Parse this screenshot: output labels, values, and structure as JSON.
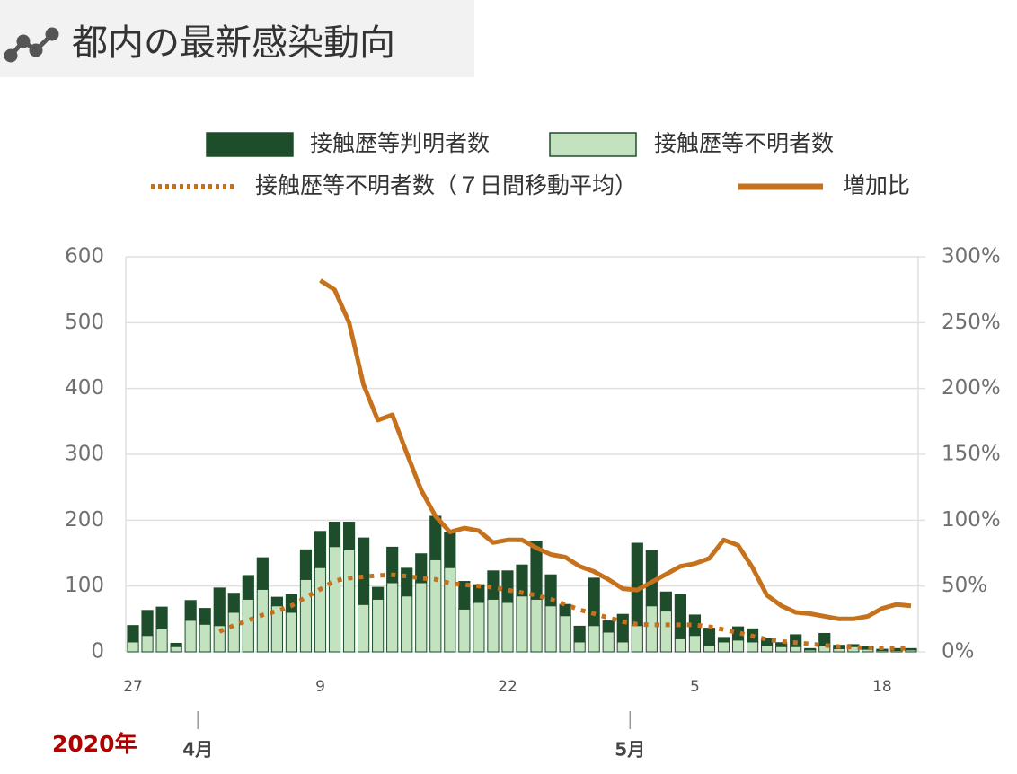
{
  "title": "都内の最新感染動向",
  "chart_data": {
    "type": "bar",
    "stacked": true,
    "categories": [
      "27",
      null,
      null,
      null,
      null,
      null,
      null,
      null,
      null,
      null,
      null,
      null,
      null,
      "9",
      null,
      null,
      null,
      null,
      null,
      null,
      null,
      null,
      null,
      null,
      null,
      null,
      "22",
      null,
      null,
      null,
      null,
      null,
      null,
      null,
      null,
      null,
      null,
      null,
      null,
      "5",
      null,
      null,
      null,
      null,
      null,
      null,
      null,
      null,
      null,
      null,
      null,
      null,
      "18",
      null,
      null
    ],
    "year_label": "2020年",
    "month_labels": [
      "4月",
      "5月"
    ],
    "series": [
      {
        "name": "接触歴等判明者数",
        "type": "bar",
        "color": "#1e4d2b",
        "values": [
          25,
          38,
          33,
          5,
          30,
          24,
          57,
          29,
          36,
          48,
          13,
          27,
          45,
          55,
          37,
          42,
          101,
          18,
          54,
          42,
          44,
          66,
          54,
          42,
          27,
          43,
          48,
          47,
          88,
          47,
          17,
          24,
          72,
          17,
          42,
          125,
          84,
          29,
          67,
          31,
          26,
          7,
          20,
          20,
          10,
          6,
          18,
          2,
          18,
          5,
          3,
          4,
          2,
          3,
          2
        ]
      },
      {
        "name": "接触歴等不明者数",
        "type": "bar",
        "color": "#c3e3c0",
        "values": [
          15,
          25,
          35,
          8,
          48,
          42,
          40,
          60,
          80,
          95,
          70,
          60,
          110,
          128,
          160,
          155,
          72,
          80,
          105,
          85,
          105,
          140,
          128,
          65,
          75,
          80,
          75,
          85,
          80,
          70,
          55,
          15,
          40,
          30,
          15,
          40,
          70,
          62,
          20,
          25,
          10,
          15,
          18,
          15,
          10,
          8,
          8,
          3,
          10,
          5,
          8,
          4,
          2,
          2,
          3
        ]
      },
      {
        "name": "接触歴等不明者数（７日間移動平均）",
        "type": "line",
        "style": "dotted",
        "color": "#c6711c",
        "values": [
          null,
          null,
          null,
          null,
          null,
          null,
          31,
          40,
          48,
          56,
          62,
          70,
          83,
          95,
          108,
          112,
          114,
          116,
          117,
          115,
          112,
          110,
          104,
          102,
          100,
          98,
          94,
          90,
          86,
          80,
          72,
          64,
          58,
          52,
          46,
          42,
          41,
          41,
          41,
          41,
          38,
          34,
          29,
          24,
          19,
          16,
          14,
          12,
          10,
          8,
          7,
          6,
          6,
          5,
          5
        ]
      },
      {
        "name": "増加比",
        "type": "line",
        "style": "solid",
        "color": "#c6711c",
        "axis": "y2",
        "values": [
          null,
          null,
          null,
          null,
          null,
          null,
          null,
          null,
          null,
          null,
          null,
          null,
          null,
          282,
          275,
          250,
          203,
          176,
          180,
          151,
          123,
          103,
          91,
          94,
          92,
          83,
          85,
          85,
          79,
          74,
          72,
          65,
          61,
          55,
          48,
          47,
          53,
          59,
          65,
          67,
          71,
          85,
          81,
          64,
          43,
          35,
          30,
          29,
          27,
          25,
          25,
          27,
          33,
          36,
          35
        ]
      }
    ],
    "ylim": [
      0,
      600
    ],
    "yticks": [
      0,
      100,
      200,
      300,
      400,
      500,
      600
    ],
    "y2lim": [
      0,
      300
    ],
    "y2ticks": [
      {
        "value": 0,
        "label": "0%"
      },
      {
        "value": 50,
        "label": "50%"
      },
      {
        "value": 100,
        "label": "100%"
      },
      {
        "value": 150,
        "label": "150%"
      },
      {
        "value": 200,
        "label": "200%"
      },
      {
        "value": 250,
        "label": "250%"
      },
      {
        "value": 300,
        "label": "300%"
      }
    ],
    "grid": true
  }
}
